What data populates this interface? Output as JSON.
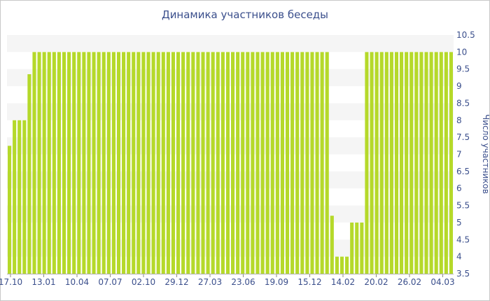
{
  "chart_data": {
    "type": "bar",
    "title": "Динамика участников беседы",
    "xlabel": "",
    "ylabel": "Число участников",
    "ylim": [
      3.5,
      10.5
    ],
    "y_ticks": [
      "3.5",
      "4",
      "4.5",
      "5",
      "5.5",
      "6",
      "6.5",
      "7",
      "7.5",
      "8",
      "8.5",
      "9",
      "9.5",
      "10",
      "10.5"
    ],
    "x_tick_labels": [
      "17.10",
      "13.01",
      "10.04",
      "07.07",
      "02.10",
      "29.12",
      "27.03",
      "23.06",
      "19.09",
      "15.12",
      "14.02",
      "20.02",
      "26.02",
      "04.03"
    ],
    "grid": "horizontal bands",
    "bar_color": "#b5d92a",
    "band_color": "#f5f5f5",
    "text_color": "#3b4f8c",
    "values": [
      7.25,
      8,
      8,
      8,
      9.35,
      10,
      10,
      10,
      10,
      10,
      10,
      10,
      10,
      10,
      10,
      10,
      10,
      10,
      10,
      10,
      10,
      10,
      10,
      10,
      10,
      10,
      10,
      10,
      10,
      10,
      10,
      10,
      10,
      10,
      10,
      10,
      10,
      10,
      10,
      10,
      10,
      10,
      10,
      10,
      10,
      10,
      10,
      10,
      10,
      10,
      10,
      10,
      10,
      10,
      10,
      10,
      10,
      10,
      10,
      10,
      10,
      10,
      10,
      10,
      10,
      5.2,
      4,
      4,
      4,
      5,
      5,
      5,
      10,
      10,
      10,
      10,
      10,
      10,
      10,
      10,
      10,
      10,
      10,
      10,
      10,
      10,
      10,
      10,
      10,
      10
    ]
  }
}
